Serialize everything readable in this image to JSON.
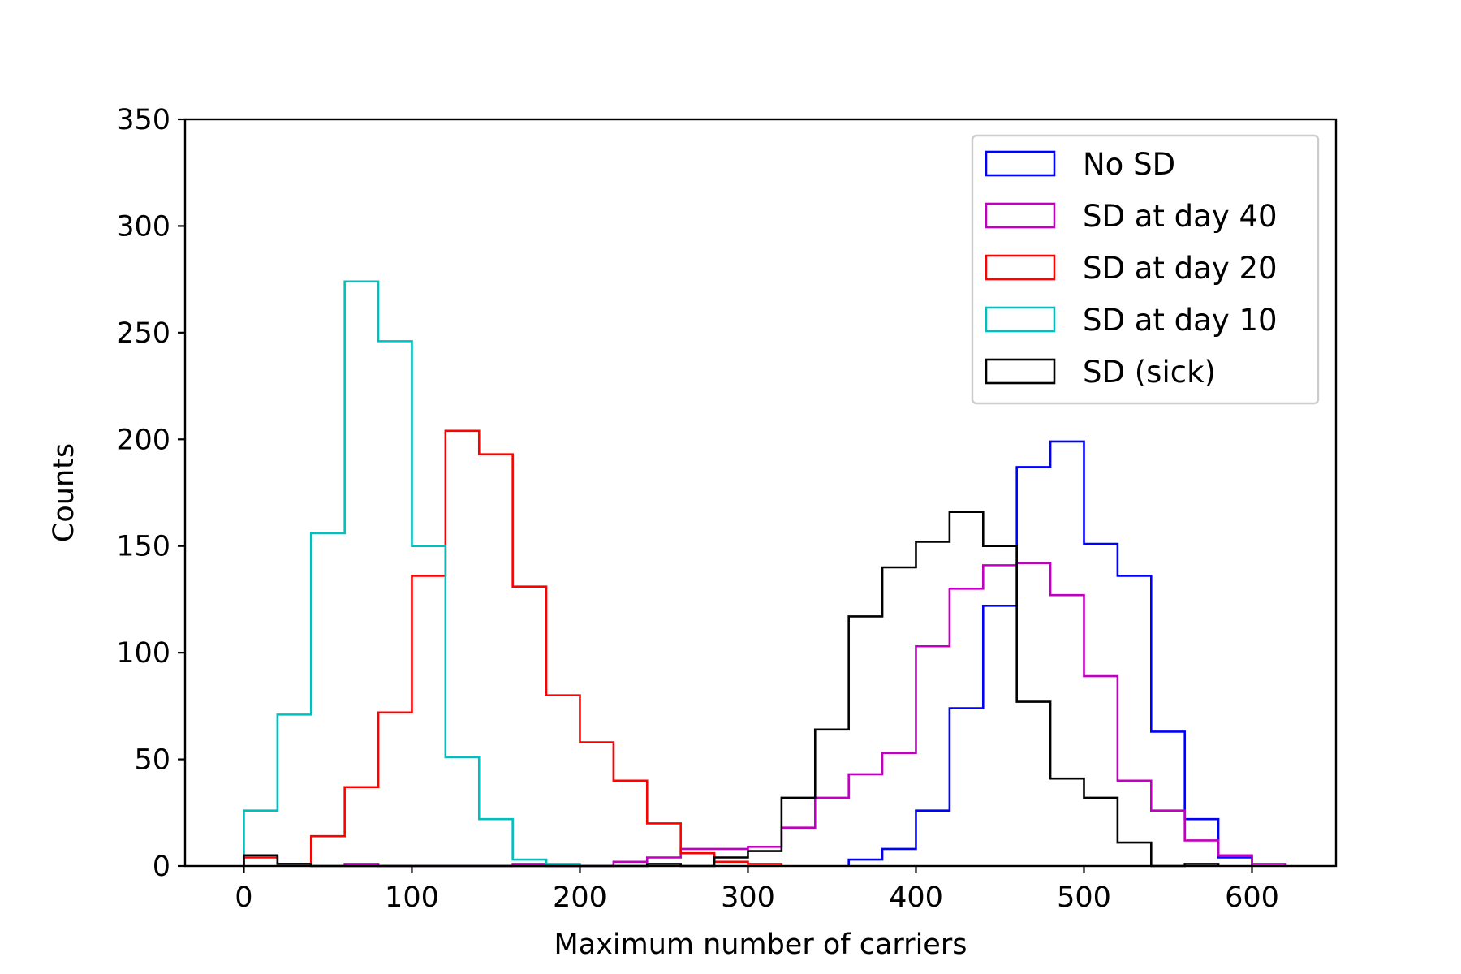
{
  "chart_data": {
    "type": "histogram",
    "xlabel": "Maximum number of carriers",
    "ylabel": "Counts",
    "xlim": [
      -35,
      650
    ],
    "ylim": [
      0,
      350
    ],
    "xticks": [
      0,
      100,
      200,
      300,
      400,
      500,
      600
    ],
    "yticks": [
      0,
      50,
      100,
      150,
      200,
      250,
      300,
      350
    ],
    "grid": false,
    "legend_position": "top-right",
    "bin_width": 20,
    "series": [
      {
        "name": "No SD",
        "color": "#0000ff",
        "bin_edges": [
          360,
          380,
          400,
          420,
          440,
          460,
          480,
          500,
          520,
          540,
          560,
          580,
          600
        ],
        "counts": [
          3,
          8,
          26,
          74,
          122,
          187,
          199,
          151,
          136,
          63,
          22,
          4
        ]
      },
      {
        "name": "SD at day 40",
        "color": "#bf00bf",
        "bin_edges": [
          60,
          80,
          100,
          120,
          140,
          160,
          180,
          200,
          220,
          240,
          260,
          280,
          300,
          320,
          340,
          360,
          380,
          400,
          420,
          440,
          460,
          480,
          500,
          520,
          540,
          560,
          580,
          600,
          620
        ],
        "counts": [
          1,
          0,
          0,
          0,
          0,
          1,
          0,
          0,
          2,
          4,
          8,
          8,
          9,
          18,
          32,
          43,
          53,
          103,
          130,
          141,
          142,
          127,
          89,
          40,
          26,
          12,
          5,
          1
        ]
      },
      {
        "name": "SD at day 20",
        "color": "#ff0000",
        "bin_edges": [
          0,
          20,
          40,
          60,
          80,
          100,
          120,
          140,
          160,
          180,
          200,
          220,
          240,
          260,
          280,
          300,
          320
        ],
        "counts": [
          4,
          1,
          14,
          37,
          72,
          136,
          204,
          193,
          131,
          80,
          58,
          40,
          20,
          6,
          2,
          1
        ]
      },
      {
        "name": "SD at day 10",
        "color": "#00bfbf",
        "bin_edges": [
          0,
          20,
          40,
          60,
          80,
          100,
          120,
          140,
          160,
          180,
          200
        ],
        "counts": [
          26,
          71,
          156,
          274,
          246,
          150,
          51,
          22,
          3,
          1
        ]
      },
      {
        "name": "SD (sick)",
        "color": "#000000",
        "bin_edges": [
          0,
          20,
          40,
          60,
          80,
          100,
          120,
          140,
          160,
          180,
          200,
          220,
          240,
          260,
          280,
          300,
          320,
          340,
          360,
          380,
          400,
          420,
          440,
          460,
          480,
          500,
          520,
          540,
          560,
          580
        ],
        "counts": [
          5,
          1,
          0,
          0,
          0,
          0,
          0,
          0,
          0,
          0,
          0,
          0,
          1,
          0,
          4,
          7,
          32,
          64,
          117,
          140,
          152,
          166,
          150,
          77,
          41,
          32,
          11,
          0,
          1
        ]
      }
    ]
  }
}
